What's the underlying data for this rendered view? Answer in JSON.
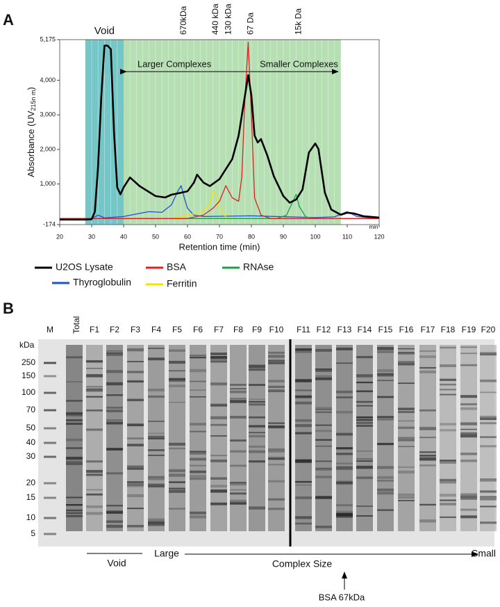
{
  "chart_data": {
    "type": "line",
    "panel": "A",
    "y_label": "Absorbance (UV",
    "y_label_sub": "215n m",
    "y_label_end": ")",
    "x_label": "Retention time (min)",
    "x_unit": "min",
    "xlim": [
      20,
      120
    ],
    "xticks": [
      20,
      30,
      40,
      50,
      60,
      70,
      80,
      90,
      100,
      110,
      120
    ],
    "ylim": [
      -174,
      5175
    ],
    "yticks": [
      -174,
      {
        "value": 1000,
        "label": "1,000"
      },
      {
        "value": 2000,
        "label": "2,000"
      },
      {
        "value": 3000,
        "label": "3,000"
      },
      {
        "value": 4000,
        "label": "4,000"
      },
      {
        "value": 5175,
        "label": "5,175"
      }
    ],
    "regions": [
      {
        "label": "Void",
        "start": 28,
        "end": 40,
        "color": "#5dbcbc"
      },
      {
        "start": 40,
        "end": 108,
        "color": "#a9d9a6"
      }
    ],
    "arrow_labels": [
      "Larger Complexes",
      "Smaller Complexes"
    ],
    "annotations": [
      {
        "text": "670kDa",
        "x": 58
      },
      {
        "text": "440 kDa",
        "x": 68
      },
      {
        "text": "130 kDa",
        "x": 72
      },
      {
        "text": "67 Da",
        "x": 79
      },
      {
        "text": "15k Da",
        "x": 94
      }
    ],
    "series": [
      {
        "name": "U2OS Lysate",
        "color": "#000000",
        "x": [
          20,
          28,
          30,
          31,
          32,
          33,
          34,
          35,
          36,
          37,
          38,
          39,
          40,
          42,
          45,
          50,
          53,
          55,
          58,
          60,
          62,
          63,
          65,
          67,
          70,
          72,
          74,
          76,
          78,
          79,
          80,
          81,
          82,
          83,
          85,
          87,
          90,
          92,
          94,
          96,
          98,
          100,
          101,
          103,
          105,
          108,
          110,
          112,
          115,
          120
        ],
        "values": [
          -30,
          -30,
          -20,
          200,
          1500,
          3500,
          5000,
          5000,
          4900,
          2500,
          900,
          700,
          900,
          1190,
          940,
          650,
          610,
          690,
          750,
          790,
          1040,
          1270,
          1040,
          940,
          1140,
          1430,
          1720,
          2400,
          3560,
          4150,
          3560,
          2400,
          2200,
          2300,
          1820,
          1230,
          650,
          460,
          550,
          840,
          1910,
          2170,
          2010,
          750,
          260,
          110,
          170,
          150,
          70,
          30
        ]
      },
      {
        "name": "Thyroglobulin",
        "color": "#1f4fd6",
        "x": [
          20,
          30,
          32,
          34,
          40,
          45,
          48,
          52,
          55,
          57,
          58,
          59,
          60,
          62,
          65,
          80,
          100,
          106,
          110,
          113,
          120
        ],
        "values": [
          0,
          0,
          100,
          20,
          60,
          150,
          200,
          180,
          400,
          800,
          950,
          600,
          300,
          100,
          60,
          80,
          30,
          50,
          200,
          60,
          0
        ]
      },
      {
        "name": "BSA",
        "color": "#e02020",
        "x": [
          20,
          60,
          65,
          68,
          70,
          72,
          74,
          76,
          77,
          78,
          79,
          80,
          81,
          83,
          86,
          120
        ],
        "values": [
          0,
          0,
          100,
          300,
          500,
          950,
          600,
          500,
          1200,
          3500,
          5100,
          3000,
          600,
          100,
          0,
          0
        ]
      },
      {
        "name": "Ferritin",
        "color": "#f2e600",
        "x": [
          20,
          55,
          60,
          65,
          67,
          68,
          69,
          70,
          72,
          75,
          120
        ],
        "values": [
          0,
          0,
          100,
          200,
          450,
          800,
          700,
          300,
          50,
          0,
          0
        ]
      },
      {
        "name": "RNAse",
        "color": "#1aa04a",
        "x": [
          20,
          88,
          91,
          93,
          94,
          95,
          97,
          100,
          120
        ],
        "values": [
          0,
          0,
          100,
          500,
          700,
          350,
          50,
          0,
          0
        ]
      }
    ]
  },
  "gel": {
    "panel": "B",
    "unit": "kDa",
    "lanes": [
      "M",
      "Total",
      "F1",
      "F2",
      "F3",
      "F4",
      "F5",
      "F6",
      "F7",
      "F8",
      "F9",
      "F10",
      "F11",
      "F12",
      "F13",
      "F14",
      "F15",
      "F16",
      "F17",
      "F18",
      "F19",
      "F20"
    ],
    "markers": [
      "250",
      "150",
      "100",
      "70",
      "50",
      "40",
      "30",
      "20",
      "15",
      "10",
      "5"
    ],
    "void_label": "Void",
    "large_label": "Large",
    "axis_label": "Complex Size",
    "small_label": "Small",
    "bsa_label": "BSA 67kDa"
  }
}
